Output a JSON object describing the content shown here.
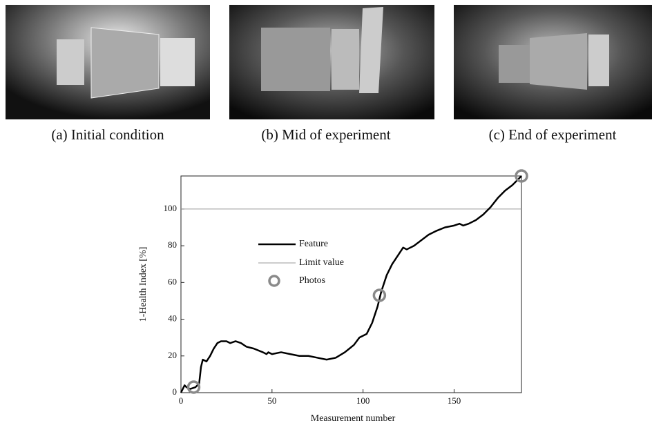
{
  "photos": {
    "captions": [
      "(a) Initial condition",
      "(b) Mid of experiment",
      "(c) End of experiment"
    ]
  },
  "chart_data": {
    "type": "line",
    "xlabel": "Measurement number",
    "ylabel": "1-Health Index [%]",
    "xlim": [
      0,
      187
    ],
    "ylim": [
      0,
      118
    ],
    "xticks": [
      0,
      50,
      100,
      150
    ],
    "yticks": [
      0,
      20,
      40,
      60,
      80,
      100
    ],
    "series": [
      {
        "name": "Feature",
        "color": "#000000",
        "x": [
          0,
          2,
          3,
          5,
          8,
          10,
          11,
          12,
          14,
          16,
          18,
          20,
          22,
          25,
          27,
          30,
          33,
          36,
          40,
          45,
          47,
          48,
          50,
          55,
          60,
          65,
          68,
          70,
          75,
          80,
          85,
          90,
          95,
          98,
          100,
          102,
          105,
          108,
          110,
          113,
          116,
          120,
          122,
          124,
          128,
          132,
          136,
          140,
          145,
          150,
          153,
          155,
          158,
          162,
          166,
          170,
          174,
          178,
          182,
          187
        ],
        "values": [
          0,
          4,
          3,
          2,
          3,
          5,
          14,
          18,
          17,
          20,
          24,
          27,
          28,
          28,
          27,
          28,
          27,
          25,
          24,
          22,
          21,
          22,
          21,
          22,
          21,
          20,
          20,
          20,
          19,
          18,
          19,
          22,
          26,
          30,
          31,
          32,
          38,
          47,
          55,
          64,
          70,
          76,
          79,
          78,
          80,
          83,
          86,
          88,
          90,
          91,
          92,
          91,
          92,
          94,
          97,
          101,
          106,
          110,
          113,
          118
        ]
      },
      {
        "name": "Limit value",
        "color": "#9a9a9a",
        "values": [
          100
        ]
      },
      {
        "name": "Photos",
        "color": "#8a8a8a",
        "x": [
          7,
          109,
          187
        ],
        "values": [
          3,
          53,
          118
        ]
      }
    ]
  }
}
